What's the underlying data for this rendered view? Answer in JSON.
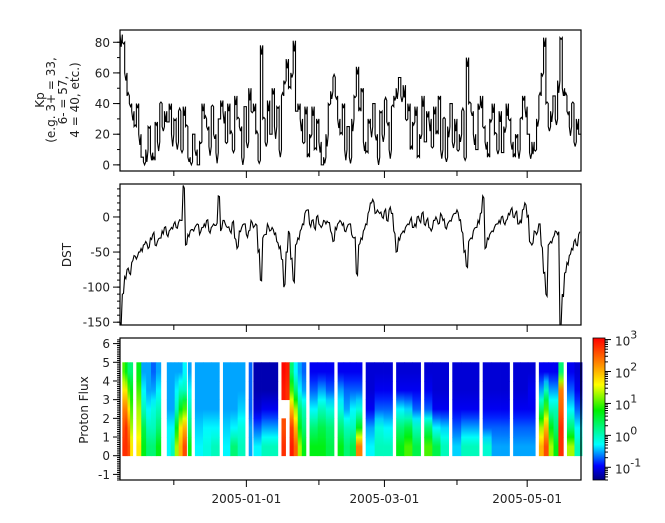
{
  "chart_data": [
    {
      "type": "line",
      "ylabel": [
        "Kp",
        "(e.g. 3+ = 33,",
        "6- = 57,",
        "4 = 40, etc.)"
      ],
      "ylim": [
        -4,
        88
      ],
      "y_ticks": [
        "0",
        "20",
        "40",
        "60",
        "80"
      ],
      "y_tick_values": [
        0,
        20,
        40,
        60,
        80
      ],
      "y_minor_step": 10,
      "xlim": [
        "2004-11-08",
        "2005-05-24"
      ],
      "grid": false,
      "series": [
        {
          "x_start": "2004-11-08",
          "x_step_days": 1,
          "y": [
            85,
            80,
            60,
            45,
            40,
            35,
            25,
            40,
            20,
            5,
            2,
            10,
            25,
            8,
            3,
            28,
            15,
            40,
            25,
            35,
            28,
            40,
            20,
            30,
            15,
            35,
            10,
            38,
            25,
            5,
            2,
            20,
            10,
            0,
            15,
            40,
            30,
            25,
            12,
            38,
            20,
            8,
            30,
            42,
            35,
            15,
            40,
            20,
            10,
            45,
            30,
            25,
            5,
            38,
            15,
            50,
            35,
            40,
            20,
            3,
            78,
            30,
            15,
            42,
            20,
            50,
            25,
            38,
            10,
            45,
            55,
            69,
            50,
            60,
            81,
            35,
            40,
            30,
            15,
            38,
            5,
            20,
            38,
            10,
            30,
            15,
            0,
            5,
            20,
            40,
            48,
            57,
            45,
            30,
            20,
            40,
            10,
            25,
            5,
            30,
            45,
            64,
            35,
            50,
            15,
            8,
            30,
            25,
            40,
            20,
            5,
            35,
            20,
            42,
            28,
            10,
            38,
            45,
            50,
            57,
            45,
            52,
            30,
            40,
            10,
            28,
            38,
            5,
            20,
            45,
            15,
            35,
            30,
            12,
            38,
            20,
            45,
            10,
            30,
            5,
            25,
            40,
            15,
            30,
            10,
            20,
            35,
            5,
            70,
            40,
            35,
            20,
            10,
            40,
            45,
            25,
            15,
            5,
            30,
            40,
            20,
            10,
            35,
            8,
            25,
            40,
            30,
            15,
            5,
            20,
            10,
            30,
            45,
            38,
            20,
            8,
            15,
            10,
            30,
            45,
            60,
            83,
            40,
            25,
            35,
            45,
            30,
            55,
            83,
            50,
            45,
            35,
            25,
            40,
            15,
            30,
            20
          ]
        }
      ]
    },
    {
      "type": "line",
      "ylabel": [
        "DST"
      ],
      "ylim": [
        -154,
        47
      ],
      "y_ticks": [
        "-150",
        "-100",
        "-50",
        "0"
      ],
      "y_tick_values": [
        -150,
        -100,
        -50,
        0
      ],
      "y_minor_step": 10,
      "xlim": [
        "2004-11-08",
        "2005-05-24"
      ],
      "grid": false,
      "series": [
        {
          "x_start": "2004-11-08",
          "x_step_days": 1,
          "y": [
            -150,
            -110,
            -85,
            -75,
            -80,
            -65,
            -55,
            -60,
            -50,
            -45,
            -40,
            -35,
            -45,
            -30,
            -25,
            -40,
            -35,
            -30,
            -20,
            -15,
            -25,
            -20,
            -15,
            -10,
            -15,
            -8,
            -5,
            45,
            -40,
            -25,
            -20,
            -18,
            -15,
            -10,
            -25,
            -15,
            -10,
            -5,
            -20,
            -15,
            -10,
            -12,
            30,
            -20,
            -5,
            -10,
            -15,
            -20,
            -8,
            -30,
            -45,
            -20,
            -15,
            -10,
            -25,
            -20,
            -5,
            -15,
            -10,
            -50,
            -90,
            -30,
            -25,
            -10,
            -20,
            -15,
            -25,
            -35,
            -45,
            -60,
            -100,
            -50,
            -20,
            -60,
            -90,
            -40,
            -30,
            -20,
            -10,
            5,
            10,
            -10,
            -5,
            -15,
            0,
            -10,
            -15,
            -5,
            -10,
            -8,
            -20,
            -35,
            -15,
            -10,
            -5,
            -12,
            -20,
            -15,
            -10,
            -25,
            -30,
            -80,
            -40,
            -30,
            -20,
            -10,
            5,
            20,
            25,
            5,
            10,
            5,
            0,
            8,
            -5,
            10,
            5,
            -20,
            -50,
            -30,
            -25,
            -20,
            -15,
            -10,
            -5,
            -15,
            -10,
            0,
            -5,
            5,
            -10,
            -5,
            -15,
            -20,
            -5,
            0,
            -10,
            5,
            -5,
            -15,
            -10,
            -5,
            0,
            5,
            10,
            -5,
            -20,
            -50,
            -70,
            -35,
            -30,
            -20,
            -15,
            -5,
            5,
            30,
            -45,
            -30,
            -25,
            -20,
            -15,
            -10,
            -5,
            0,
            -8,
            -5,
            5,
            10,
            0,
            5,
            -10,
            -5,
            10,
            20,
            0,
            -35,
            -40,
            -20,
            -25,
            -10,
            -40,
            -80,
            -110,
            -40,
            -35,
            -30,
            -20,
            -25,
            -154,
            -110,
            -80,
            -65,
            -55,
            -45,
            -35,
            -40,
            -25
          ]
        }
      ]
    },
    {
      "type": "heatmap",
      "ylabel": [
        "Proton Flux"
      ],
      "ylim": [
        -1.3,
        6.3
      ],
      "y_ticks": [
        "-1",
        "0",
        "1",
        "2",
        "3",
        "4",
        "5",
        "6"
      ],
      "y_tick_values": [
        -1,
        0,
        1,
        2,
        3,
        4,
        5,
        6
      ],
      "y_minor_step": 0.1,
      "xlim": [
        "2004-11-08",
        "2005-05-24"
      ],
      "x_ticks": [
        "2005-01-01",
        "2005-03-01",
        "2005-05-01"
      ],
      "x_minor_ticks": [
        "2004-12-01",
        "2005-02-01",
        "2005-04-01"
      ],
      "y_bins": [
        0,
        1,
        2,
        3,
        4,
        5
      ],
      "colorbar": {
        "scale": "log",
        "range": [
          0.04,
          1120
        ],
        "ticks": [
          {
            "base": "10",
            "exp": "3",
            "value": 1000
          },
          {
            "base": "10",
            "exp": "2",
            "value": 100
          },
          {
            "base": "10",
            "exp": "1",
            "value": 10
          },
          {
            "base": "10",
            "exp": "0",
            "value": 1
          },
          {
            "base": "10",
            "exp": "-1",
            "value": 0.1
          }
        ],
        "colormap": [
          "#00007f",
          "#0000ff",
          "#00ffff",
          "#00f000",
          "#ffff00",
          "#ff8000",
          "#ff0000"
        ]
      },
      "blocks": [
        {
          "from": "2004-11-09",
          "to": "2004-11-13",
          "columns": [
            [
              600,
              400,
              200,
              50,
              10
            ],
            [
              600,
              600,
              200,
              50,
              5
            ],
            [
              400,
              200,
              50,
              10,
              2
            ],
            [
              50,
              20,
              10,
              5,
              2
            ]
          ]
        },
        {
          "from": "2004-11-15",
          "to": "2004-11-25",
          "columns": [
            [
              50,
              30,
              20,
              10,
              5
            ],
            [
              5,
              3,
              1,
              0.5,
              0.3
            ],
            [
              2,
              1,
              0.5,
              0.3,
              0.3
            ],
            [
              2,
              1,
              0.7,
              0.3,
              0.2
            ],
            [
              5,
              2,
              1,
              0.5,
              0.3
            ]
          ]
        },
        {
          "from": "2004-11-28",
          "to": "2004-12-06",
          "columns": [
            [
              0.5,
              0.5,
              0.3,
              0.3,
              0.3
            ],
            [
              1,
              0.5,
              0.3,
              0.3,
              0.3
            ],
            [
              20,
              5,
              1,
              0.5,
              0.3
            ],
            [
              100,
              50,
              5,
              1,
              0.3
            ],
            [
              400,
              100,
              10,
              1,
              0.5
            ]
          ]
        },
        {
          "from": "2004-12-07",
          "to": "2004-12-08",
          "columns": [
            [
              5,
              2,
              1,
              0.5,
              0.3
            ]
          ]
        },
        {
          "from": "2004-12-10",
          "to": "2004-12-20",
          "columns": [
            [
              0.5,
              0.4,
              0.3,
              0.3,
              0.3
            ],
            [
              0.7,
              0.5,
              0.3,
              0.3,
              0.3
            ],
            [
              1,
              0.5,
              0.3,
              0.3,
              0.3
            ]
          ]
        },
        {
          "from": "2004-12-22",
          "to": "2004-12-31",
          "columns": [
            [
              0.5,
              0.4,
              0.3,
              0.3,
              0.3
            ],
            [
              2,
              0.5,
              0.3,
              0.3,
              0.3
            ],
            [
              1,
              0.7,
              0.4,
              0.3,
              0.3
            ]
          ]
        },
        {
          "from": "2005-01-02",
          "to": "2005-01-03",
          "columns": [
            [
              0.3,
              0.3,
              0.2,
              0.2,
              0.2
            ]
          ]
        },
        {
          "from": "2005-01-04",
          "to": "2005-01-14",
          "columns": [
            [
              0.5,
              0.2,
              0.08,
              0.06,
              0.06
            ],
            [
              1,
              0.3,
              0.1,
              0.06,
              0.06
            ],
            [
              1,
              0.3,
              0.1,
              0.06,
              0.06
            ]
          ]
        },
        {
          "from": "2005-01-16",
          "to": "2005-01-26",
          "columns": [
            [
              600,
              400,
              null,
              800,
              1000
            ],
            [
              null,
              null,
              null,
              600,
              800
            ],
            [
              800,
              500,
              100,
              10,
              2
            ],
            [
              300,
              100,
              20,
              2,
              0.5
            ],
            [
              20,
              5,
              2,
              0.5,
              0.3
            ],
            [
              5,
              2,
              1,
              0.3,
              0.2
            ]
          ]
        },
        {
          "from": "2005-01-28",
          "to": "2005-02-07",
          "columns": [
            [
              5,
              2,
              0.5,
              0.2,
              0.1
            ],
            [
              5,
              3,
              1,
              0.3,
              0.1
            ],
            [
              3,
              2,
              0.7,
              0.2,
              0.1
            ]
          ]
        },
        {
          "from": "2005-02-09",
          "to": "2005-02-19",
          "columns": [
            [
              5,
              2,
              0.7,
              0.3,
              0.1
            ],
            [
              2,
              1,
              0.3,
              0.2,
              0.1
            ],
            [
              3,
              1,
              0.5,
              0.2,
              0.1
            ],
            [
              200,
              5,
              0.7,
              0.2,
              0.1
            ]
          ]
        },
        {
          "from": "2005-02-21",
          "to": "2005-03-04",
          "columns": [
            [
              0.5,
              0.3,
              0.1,
              0.08,
              0.08
            ],
            [
              1,
              0.7,
              0.2,
              0.1,
              0.08
            ],
            [
              1,
              0.5,
              0.2,
              0.1,
              0.08
            ]
          ]
        },
        {
          "from": "2005-03-06",
          "to": "2005-03-16",
          "columns": [
            [
              5,
              2,
              0.5,
              0.1,
              0.08
            ],
            [
              10,
              3,
              0.4,
              0.1,
              0.08
            ],
            [
              3,
              1,
              0.2,
              0.1,
              0.08
            ]
          ]
        },
        {
          "from": "2005-03-18",
          "to": "2005-03-28",
          "columns": [
            [
              10,
              2,
              0.2,
              0.1,
              0.08
            ],
            [
              3,
              0.5,
              0.1,
              0.08,
              0.08
            ],
            [
              1,
              0.4,
              0.1,
              0.08,
              0.08
            ]
          ]
        },
        {
          "from": "2005-03-30",
          "to": "2005-04-10",
          "columns": [
            [
              0.4,
              0.2,
              0.1,
              0.08,
              0.08
            ],
            [
              1,
              0.3,
              0.1,
              0.08,
              0.08
            ],
            [
              1,
              0.3,
              0.1,
              0.08,
              0.08
            ]
          ]
        },
        {
          "from": "2005-04-12",
          "to": "2005-04-23",
          "columns": [
            [
              0.8,
              0.2,
              0.1,
              0.08,
              0.08
            ],
            [
              0.3,
              0.2,
              0.1,
              0.08,
              0.08
            ],
            [
              0.3,
              0.2,
              0.1,
              0.08,
              0.08
            ]
          ]
        },
        {
          "from": "2005-04-25",
          "to": "2005-05-04",
          "columns": [
            [
              0.3,
              0.2,
              0.1,
              0.08,
              0.08
            ],
            [
              0.3,
              0.2,
              0.1,
              0.08,
              0.08
            ],
            [
              0.3,
              0.2,
              0.1,
              0.1,
              0.08
            ]
          ]
        },
        {
          "from": "2005-05-06",
          "to": "2005-05-16",
          "columns": [
            [
              100,
              20,
              2,
              0.3,
              0.1
            ],
            [
              400,
              100,
              10,
              1,
              0.1
            ],
            [
              20,
              5,
              1,
              0.3,
              0.1
            ],
            [
              5,
              2,
              1,
              0.3,
              0.1
            ],
            [
              600,
              600,
              300,
              200,
              2
            ]
          ]
        },
        {
          "from": "2005-05-18",
          "to": "2005-05-24",
          "columns": [
            [
              20,
              2,
              0.5,
              0.2,
              0.1
            ],
            [
              1,
              0.5,
              0.2,
              0.1,
              0.08
            ]
          ]
        }
      ]
    }
  ]
}
